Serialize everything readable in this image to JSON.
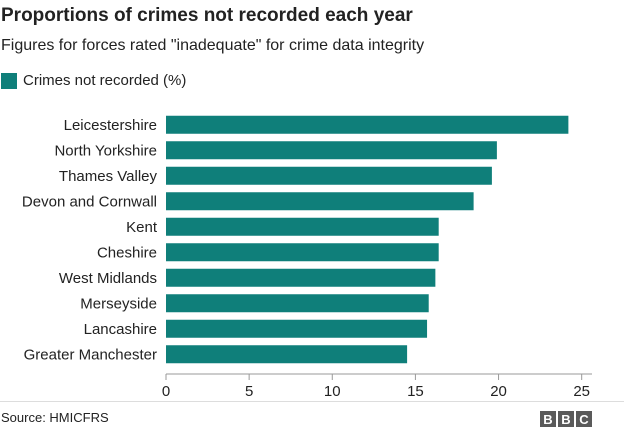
{
  "title": "Proportions of crimes not recorded each year",
  "subtitle": "Figures for forces rated \"inadequate\" for crime data integrity",
  "source": "Source: HMICFRS",
  "logo": [
    "B",
    "B",
    "C"
  ],
  "colors": {
    "bar": "#0f7f7a",
    "axis": "#999999",
    "grid": "#e5e5e5",
    "text": "#222222"
  },
  "chart_data": {
    "type": "bar",
    "orientation": "horizontal",
    "categories": [
      "Leicestershire",
      "North Yorkshire",
      "Thames Valley",
      "Devon and Cornwall",
      "Kent",
      "Cheshire",
      "West Midlands",
      "Merseyside",
      "Lancashire",
      "Greater Manchester"
    ],
    "series": [
      {
        "name": "Crimes not recorded (%)",
        "values": [
          24.2,
          19.9,
          19.6,
          18.5,
          16.4,
          16.4,
          16.2,
          15.8,
          15.7,
          14.5
        ]
      }
    ],
    "xticks": [
      0,
      5,
      10,
      15,
      20,
      25
    ],
    "xlim": [
      0,
      25.5
    ],
    "legend": "top-left",
    "grid": false
  }
}
